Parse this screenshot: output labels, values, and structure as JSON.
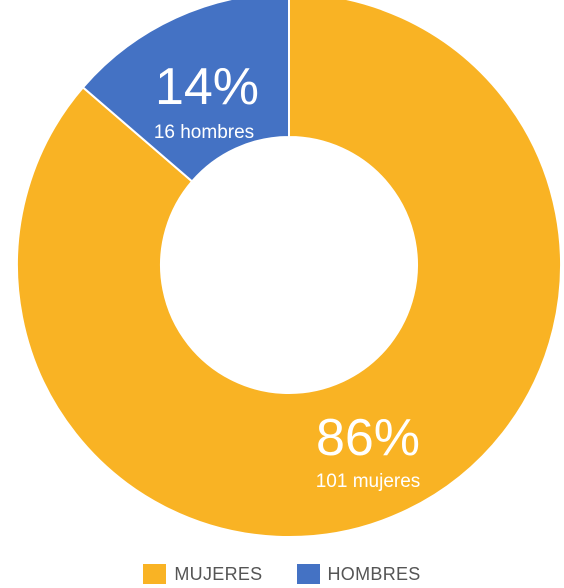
{
  "chart_data": {
    "type": "pie",
    "donut": true,
    "title": "",
    "legend_position": "bottom",
    "slices": [
      {
        "name": "MUJERES",
        "value": 101,
        "percent_label": "86%",
        "detail_label": "101 mujeres",
        "color": "#F9B324"
      },
      {
        "name": "HOMBRES",
        "value": 16,
        "percent_label": "14%",
        "detail_label": "16 hombres",
        "color": "#4472C4"
      }
    ]
  }
}
